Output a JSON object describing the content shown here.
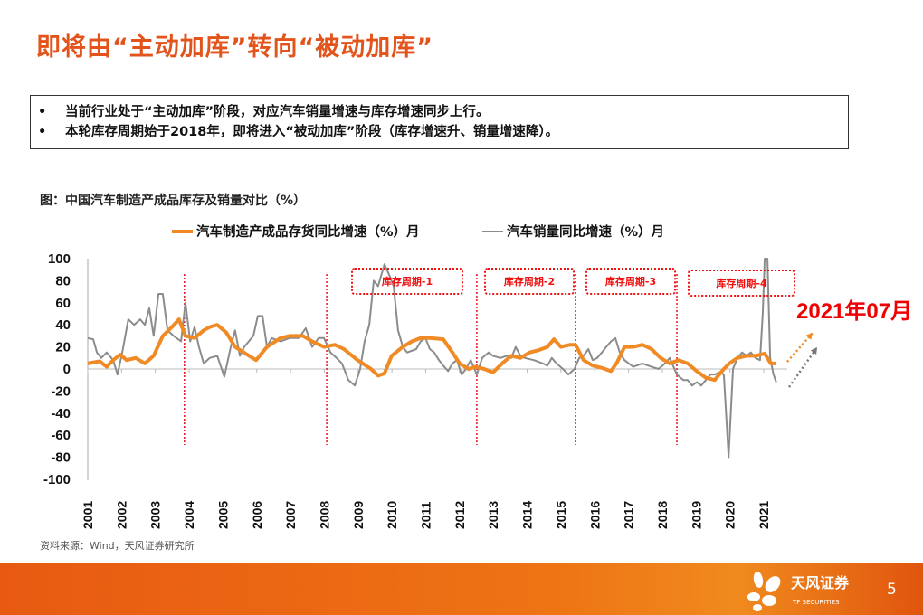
{
  "slide": {
    "title": "即将由“主动加库”转向“被动加库”",
    "bullets": [
      "当前行业处于“主动加库”阶段，对应汽车销量增速与库存增速同步上行。",
      "本轮库存周期始于2018年，即将进入“被动加库”阶段（库存增速升、销量增速降）。"
    ],
    "bullet_marker": "•",
    "source": "资料来源：Wind，天风证券研究所",
    "page_number": "5",
    "brand": {
      "name": "天风证券",
      "sub": "TF SECURITIES",
      "color": "#E8601A"
    },
    "accent_color": "#E2541B"
  },
  "chart_data": {
    "type": "line",
    "title": "图：中国汽车制造产成品库存及销量对比（%）",
    "xlabel": "",
    "ylabel": "",
    "x_unit": "year",
    "xlim": [
      2001,
      2021.7
    ],
    "ylim": [
      -100,
      100
    ],
    "yticks": [
      100,
      80,
      60,
      40,
      20,
      0,
      -20,
      -40,
      -60,
      -80,
      -100
    ],
    "xticks": [
      "2001",
      "2002",
      "2003",
      "2004",
      "2005",
      "2006",
      "2007",
      "2008",
      "2009",
      "2010",
      "2011",
      "2012",
      "2013",
      "2014",
      "2015",
      "2016",
      "2017",
      "2018",
      "2019",
      "2020",
      "2021"
    ],
    "grid": false,
    "legend_position": "top",
    "series": [
      {
        "name": "汽车制造产成品存货同比增速（%）月",
        "color": "#F08A24",
        "points": [
          [
            2001.0,
            5
          ],
          [
            2001.35,
            7
          ],
          [
            2001.56,
            2
          ],
          [
            2001.75,
            8
          ],
          [
            2001.96,
            13
          ],
          [
            2002.15,
            8
          ],
          [
            2002.42,
            10
          ],
          [
            2002.69,
            5
          ],
          [
            2002.95,
            12
          ],
          [
            2003.22,
            30
          ],
          [
            2003.49,
            38
          ],
          [
            2003.7,
            45
          ],
          [
            2003.89,
            30
          ],
          [
            2004.16,
            28
          ],
          [
            2004.43,
            35
          ],
          [
            2004.61,
            38
          ],
          [
            2004.83,
            40
          ],
          [
            2005.1,
            33
          ],
          [
            2005.36,
            20
          ],
          [
            2005.77,
            12
          ],
          [
            2005.98,
            8
          ],
          [
            2006.3,
            20
          ],
          [
            2006.7,
            28
          ],
          [
            2006.97,
            30
          ],
          [
            2007.37,
            30
          ],
          [
            2007.64,
            25
          ],
          [
            2007.99,
            20
          ],
          [
            2008.31,
            22
          ],
          [
            2008.58,
            18
          ],
          [
            2008.98,
            8
          ],
          [
            2009.38,
            0
          ],
          [
            2009.59,
            -6
          ],
          [
            2009.78,
            -4
          ],
          [
            2009.99,
            12
          ],
          [
            2010.32,
            20
          ],
          [
            2010.59,
            25
          ],
          [
            2010.85,
            28
          ],
          [
            2011.12,
            28
          ],
          [
            2011.52,
            27
          ],
          [
            2011.79,
            15
          ],
          [
            2012.0,
            5
          ],
          [
            2012.27,
            0
          ],
          [
            2012.46,
            2
          ],
          [
            2012.73,
            0
          ],
          [
            2012.99,
            -3
          ],
          [
            2013.26,
            5
          ],
          [
            2013.53,
            12
          ],
          [
            2013.8,
            10
          ],
          [
            2014.07,
            15
          ],
          [
            2014.33,
            17
          ],
          [
            2014.6,
            20
          ],
          [
            2014.79,
            27
          ],
          [
            2015.0,
            20
          ],
          [
            2015.27,
            22
          ],
          [
            2015.43,
            22
          ],
          [
            2015.67,
            8
          ],
          [
            2015.94,
            3
          ],
          [
            2016.21,
            1
          ],
          [
            2016.48,
            -2
          ],
          [
            2016.66,
            6
          ],
          [
            2016.88,
            20
          ],
          [
            2017.14,
            20
          ],
          [
            2017.41,
            22
          ],
          [
            2017.68,
            18
          ],
          [
            2017.95,
            10
          ],
          [
            2018.22,
            5
          ],
          [
            2018.48,
            8
          ],
          [
            2018.75,
            5
          ],
          [
            2019.02,
            -2
          ],
          [
            2019.29,
            -8
          ],
          [
            2019.55,
            -10
          ],
          [
            2019.82,
            0
          ],
          [
            2019.98,
            5
          ],
          [
            2020.22,
            10
          ],
          [
            2020.49,
            12
          ],
          [
            2020.76,
            12
          ],
          [
            2021.03,
            14
          ],
          [
            2021.21,
            5
          ],
          [
            2021.37,
            5
          ]
        ]
      },
      {
        "name": "汽车销量同比增速（%）月",
        "color": "#8C8C8C",
        "points": [
          [
            2001.0,
            28
          ],
          [
            2001.16,
            27
          ],
          [
            2001.27,
            15
          ],
          [
            2001.4,
            10
          ],
          [
            2001.56,
            15
          ],
          [
            2001.75,
            8
          ],
          [
            2001.88,
            -5
          ],
          [
            2002.02,
            15
          ],
          [
            2002.2,
            45
          ],
          [
            2002.37,
            40
          ],
          [
            2002.55,
            45
          ],
          [
            2002.69,
            40
          ],
          [
            2002.82,
            55
          ],
          [
            2002.95,
            30
          ],
          [
            2003.09,
            68
          ],
          [
            2003.22,
            68
          ],
          [
            2003.36,
            35
          ],
          [
            2003.54,
            30
          ],
          [
            2003.76,
            25
          ],
          [
            2003.89,
            60
          ],
          [
            2004.03,
            25
          ],
          [
            2004.16,
            38
          ],
          [
            2004.29,
            20
          ],
          [
            2004.43,
            5
          ],
          [
            2004.61,
            10
          ],
          [
            2004.83,
            12
          ],
          [
            2005.04,
            -7
          ],
          [
            2005.23,
            20
          ],
          [
            2005.36,
            35
          ],
          [
            2005.5,
            12
          ],
          [
            2005.63,
            20
          ],
          [
            2005.9,
            30
          ],
          [
            2006.03,
            48
          ],
          [
            2006.17,
            48
          ],
          [
            2006.3,
            20
          ],
          [
            2006.44,
            28
          ],
          [
            2006.7,
            25
          ],
          [
            2006.97,
            28
          ],
          [
            2007.24,
            28
          ],
          [
            2007.45,
            37
          ],
          [
            2007.64,
            20
          ],
          [
            2007.83,
            28
          ],
          [
            2007.99,
            28
          ],
          [
            2008.18,
            15
          ],
          [
            2008.36,
            10
          ],
          [
            2008.52,
            5
          ],
          [
            2008.71,
            -10
          ],
          [
            2008.9,
            -15
          ],
          [
            2009.06,
            0
          ],
          [
            2009.19,
            25
          ],
          [
            2009.33,
            40
          ],
          [
            2009.46,
            80
          ],
          [
            2009.59,
            75
          ],
          [
            2009.78,
            95
          ],
          [
            2009.92,
            85
          ],
          [
            2010.05,
            75
          ],
          [
            2010.18,
            35
          ],
          [
            2010.32,
            20
          ],
          [
            2010.45,
            15
          ],
          [
            2010.72,
            18
          ],
          [
            2010.85,
            25
          ],
          [
            2010.99,
            28
          ],
          [
            2011.12,
            18
          ],
          [
            2011.25,
            15
          ],
          [
            2011.39,
            8
          ],
          [
            2011.52,
            3
          ],
          [
            2011.66,
            -2
          ],
          [
            2011.79,
            5
          ],
          [
            2011.92,
            8
          ],
          [
            2012.06,
            -5
          ],
          [
            2012.19,
            0
          ],
          [
            2012.33,
            8
          ],
          [
            2012.51,
            -5
          ],
          [
            2012.67,
            10
          ],
          [
            2012.86,
            15
          ],
          [
            2012.99,
            12
          ],
          [
            2013.21,
            10
          ],
          [
            2013.4,
            12
          ],
          [
            2013.53,
            10
          ],
          [
            2013.66,
            20
          ],
          [
            2013.8,
            12
          ],
          [
            2013.93,
            10
          ],
          [
            2014.2,
            8
          ],
          [
            2014.47,
            5
          ],
          [
            2014.6,
            3
          ],
          [
            2014.73,
            10
          ],
          [
            2014.87,
            5
          ],
          [
            2015.06,
            0
          ],
          [
            2015.22,
            -5
          ],
          [
            2015.4,
            0
          ],
          [
            2015.54,
            10
          ],
          [
            2015.67,
            12
          ],
          [
            2015.81,
            18
          ],
          [
            2015.94,
            8
          ],
          [
            2016.07,
            10
          ],
          [
            2016.21,
            15
          ],
          [
            2016.34,
            20
          ],
          [
            2016.48,
            25
          ],
          [
            2016.61,
            28
          ],
          [
            2016.74,
            15
          ],
          [
            2016.88,
            8
          ],
          [
            2017.14,
            2
          ],
          [
            2017.41,
            5
          ],
          [
            2017.68,
            2
          ],
          [
            2017.89,
            0
          ],
          [
            2018.08,
            5
          ],
          [
            2018.22,
            10
          ],
          [
            2018.43,
            -5
          ],
          [
            2018.62,
            -10
          ],
          [
            2018.75,
            -10
          ],
          [
            2018.88,
            -15
          ],
          [
            2019.02,
            -12
          ],
          [
            2019.15,
            -15
          ],
          [
            2019.29,
            -10
          ],
          [
            2019.42,
            -5
          ],
          [
            2019.55,
            -5
          ],
          [
            2019.69,
            -3
          ],
          [
            2019.82,
            -5
          ],
          [
            2019.96,
            -80
          ],
          [
            2020.09,
            0
          ],
          [
            2020.22,
            10
          ],
          [
            2020.36,
            15
          ],
          [
            2020.49,
            12
          ],
          [
            2020.62,
            15
          ],
          [
            2020.76,
            10
          ],
          [
            2020.89,
            8
          ],
          [
            2020.97,
            50
          ],
          [
            2021.03,
            100
          ],
          [
            2021.11,
            100
          ],
          [
            2021.19,
            10
          ],
          [
            2021.29,
            -5
          ],
          [
            2021.37,
            -12
          ]
        ]
      }
    ],
    "annotations": {
      "cycle_boundaries": [
        2003.86,
        2008.07,
        2012.51,
        2015.43,
        2018.43
      ],
      "cycle_labels": [
        "库存周期-1",
        "库存周期-2",
        "库存周期-3",
        "库存周期-4"
      ],
      "callout": "2021年07月",
      "callout_color": "#F00000",
      "boundary_color": "#E8141E"
    }
  }
}
